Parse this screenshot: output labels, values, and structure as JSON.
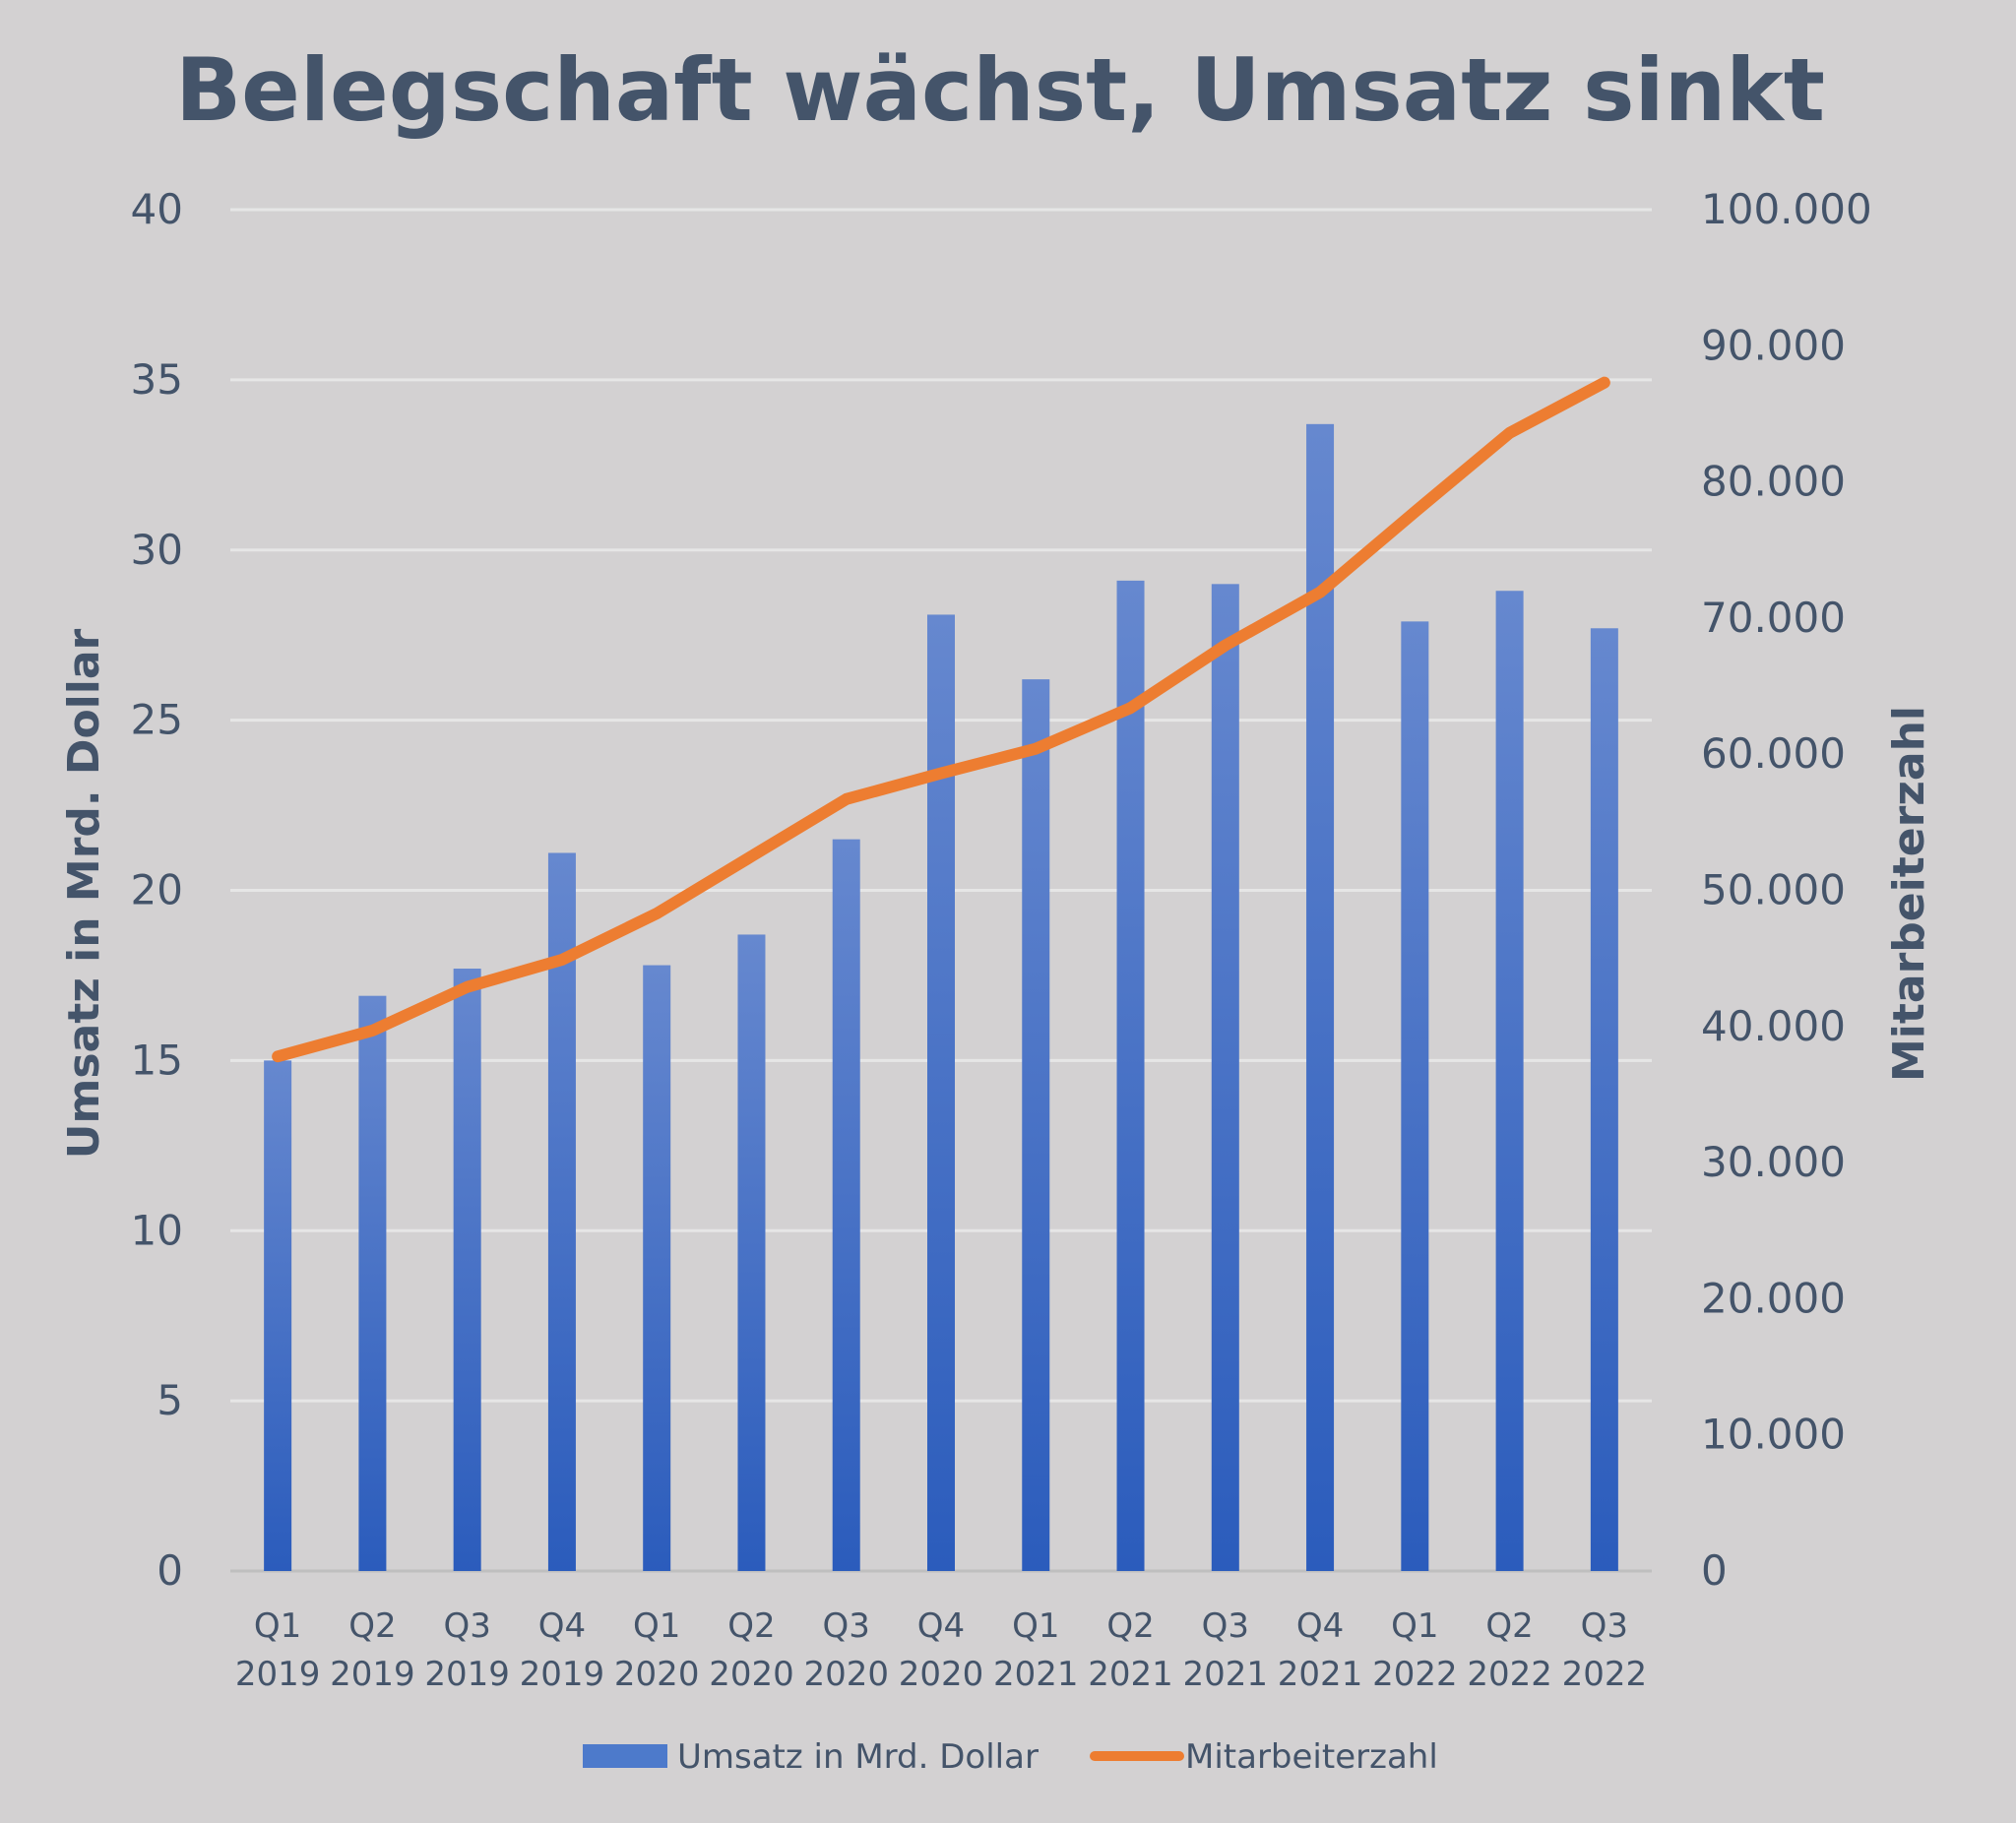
{
  "chart_data": {
    "type": "bar",
    "title": "Belegschaft wächst, Umsatz sinkt",
    "categories": [
      [
        "Q1",
        "2019"
      ],
      [
        "Q2",
        "2019"
      ],
      [
        "Q3",
        "2019"
      ],
      [
        "Q4",
        "2019"
      ],
      [
        "Q1",
        "2020"
      ],
      [
        "Q2",
        "2020"
      ],
      [
        "Q3",
        "2020"
      ],
      [
        "Q4",
        "2020"
      ],
      [
        "Q1",
        "2021"
      ],
      [
        "Q2",
        "2021"
      ],
      [
        "Q3",
        "2021"
      ],
      [
        "Q4",
        "2021"
      ],
      [
        "Q1",
        "2022"
      ],
      [
        "Q2",
        "2022"
      ],
      [
        "Q3",
        "2022"
      ]
    ],
    "series": [
      {
        "name": "Umsatz in Mrd. Dollar",
        "type": "bar",
        "axis": "left",
        "color": "#4472c4",
        "values": [
          15.0,
          16.9,
          17.7,
          21.1,
          17.8,
          18.7,
          21.5,
          28.1,
          26.2,
          29.1,
          29.0,
          33.7,
          27.9,
          28.8,
          27.7
        ]
      },
      {
        "name": "Mitarbeiterzahl",
        "type": "line",
        "axis": "right",
        "color": "#ed7d31",
        "values": [
          37800,
          39700,
          42900,
          44900,
          48300,
          52500,
          56700,
          58600,
          60400,
          63400,
          68000,
          71900,
          77800,
          83600,
          87300
        ]
      }
    ],
    "ylabel_left": "Umsatz in Mrd. Dollar",
    "ylabel_right": "Mitarbeiterzahl",
    "ylim_left": [
      0,
      40
    ],
    "ylim_right": [
      0,
      100000
    ],
    "yticks_left": [
      "0",
      "5",
      "10",
      "15",
      "20",
      "25",
      "30",
      "35",
      "40"
    ],
    "yticks_right": [
      "0",
      "10.000",
      "20.000",
      "30.000",
      "40.000",
      "50.000",
      "60.000",
      "70.000",
      "80.000",
      "90.000",
      "100.000"
    ],
    "grid": true,
    "legend_position": "bottom"
  }
}
